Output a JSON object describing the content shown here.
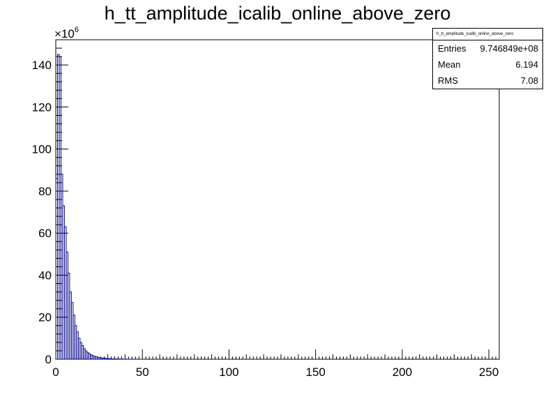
{
  "chart_data": {
    "type": "bar",
    "title": "h_tt_amplitude_icalib_online_above_zero",
    "y_multiplier": "×10",
    "y_multiplier_exp": "6",
    "xlim": [
      0,
      256
    ],
    "ylim": [
      0,
      152
    ],
    "x_ticks": [
      0,
      50,
      100,
      150,
      200,
      250
    ],
    "y_ticks": [
      0,
      20,
      40,
      60,
      80,
      100,
      120,
      140
    ],
    "series": [
      {
        "color": "#00008b",
        "bin_width": 1,
        "x_start": 0,
        "values": [
          86,
          145,
          144,
          88,
          73,
          63,
          51,
          41,
          32,
          27,
          21,
          16,
          13,
          10,
          8,
          6.5,
          5,
          4,
          3.2,
          2.6,
          2.1,
          1.7,
          1.4,
          1.1,
          0.9,
          0.75,
          0.6,
          0.5,
          0.42,
          0.35,
          0.3,
          0.25,
          0.2,
          0.17,
          0.14,
          0.12,
          0.1,
          0.08,
          0.07,
          0.06,
          0.05,
          0.04,
          0.03,
          0.025,
          0.02,
          0.015,
          0.01
        ]
      }
    ],
    "stats": {
      "header": "h_tt_amplitude_icalib_online_above_zero",
      "rows": [
        {
          "label": "Entries",
          "value": "9.746849e+08"
        },
        {
          "label": "Mean",
          "value": "6.194"
        },
        {
          "label": "RMS",
          "value": "7.08"
        }
      ]
    }
  }
}
